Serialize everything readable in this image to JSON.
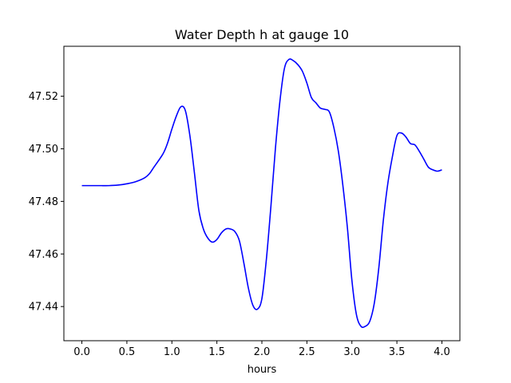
{
  "chart_data": {
    "type": "line",
    "title": "Water Depth h at gauge 10",
    "xlabel": "hours",
    "ylabel": "",
    "xlim": [
      -0.2,
      4.2
    ],
    "ylim": [
      47.427,
      47.539
    ],
    "xticks": [
      0.0,
      0.5,
      1.0,
      1.5,
      2.0,
      2.5,
      3.0,
      3.5,
      4.0
    ],
    "xtick_labels": [
      "0.0",
      "0.5",
      "1.0",
      "1.5",
      "2.0",
      "2.5",
      "3.0",
      "3.5",
      "4.0"
    ],
    "yticks": [
      47.44,
      47.46,
      47.48,
      47.5,
      47.52
    ],
    "ytick_labels": [
      "47.44",
      "47.46",
      "47.48",
      "47.50",
      "47.52"
    ],
    "grid": false,
    "legend": "none",
    "line_color": "#0000ff",
    "series": [
      {
        "x": [
          0.0,
          0.1,
          0.2,
          0.3,
          0.4,
          0.5,
          0.6,
          0.7,
          0.75,
          0.8,
          0.9,
          0.95,
          1.0,
          1.05,
          1.1,
          1.15,
          1.2,
          1.25,
          1.3,
          1.35,
          1.4,
          1.45,
          1.5,
          1.55,
          1.6,
          1.65,
          1.7,
          1.75,
          1.8,
          1.85,
          1.9,
          1.95,
          2.0,
          2.05,
          2.1,
          2.15,
          2.2,
          2.25,
          2.3,
          2.35,
          2.4,
          2.45,
          2.5,
          2.55,
          2.6,
          2.65,
          2.7,
          2.75,
          2.8,
          2.85,
          2.9,
          2.95,
          3.0,
          3.05,
          3.1,
          3.15,
          3.2,
          3.25,
          3.3,
          3.35,
          3.4,
          3.45,
          3.5,
          3.55,
          3.6,
          3.65,
          3.7,
          3.75,
          3.8,
          3.85,
          3.9,
          3.95,
          4.0
        ],
        "y": [
          47.486,
          47.486,
          47.486,
          47.486,
          47.4862,
          47.4867,
          47.4875,
          47.489,
          47.4905,
          47.493,
          47.498,
          47.502,
          47.5075,
          47.5125,
          47.516,
          47.5145,
          47.505,
          47.491,
          47.4765,
          47.4695,
          47.466,
          47.4645,
          47.4655,
          47.468,
          47.4695,
          47.4695,
          47.4685,
          47.465,
          47.4565,
          47.447,
          47.4405,
          47.439,
          47.443,
          47.458,
          47.478,
          47.5,
          47.518,
          47.5305,
          47.534,
          47.5335,
          47.532,
          47.5295,
          47.525,
          47.5195,
          47.5175,
          47.5155,
          47.515,
          47.514,
          47.508,
          47.499,
          47.486,
          47.47,
          47.45,
          47.437,
          47.4325,
          47.4325,
          47.4345,
          47.4415,
          47.455,
          47.473,
          47.487,
          47.497,
          47.505,
          47.506,
          47.5045,
          47.502,
          47.5015,
          47.499,
          47.496,
          47.493,
          47.492,
          47.4915,
          47.492
        ]
      }
    ]
  }
}
